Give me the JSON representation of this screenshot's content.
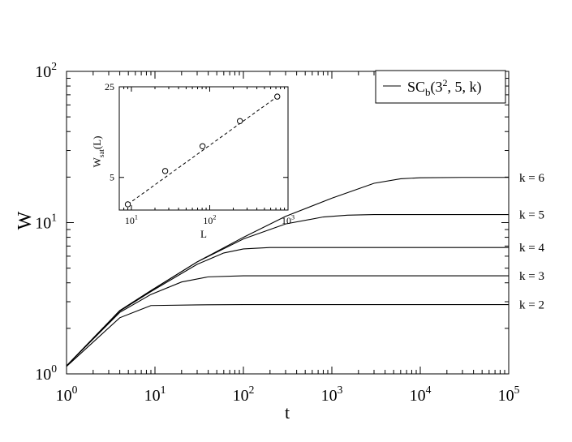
{
  "chart_data": [
    {
      "type": "line",
      "title": "",
      "xlabel": "t",
      "ylabel": "W",
      "xscale": "log",
      "yscale": "log",
      "xlim": [
        1,
        100000
      ],
      "ylim": [
        1,
        100
      ],
      "x_ticks": [
        {
          "value": 1,
          "base": "10",
          "exp": "0"
        },
        {
          "value": 10,
          "base": "10",
          "exp": "1"
        },
        {
          "value": 100,
          "base": "10",
          "exp": "2"
        },
        {
          "value": 1000,
          "base": "10",
          "exp": "3"
        },
        {
          "value": 10000,
          "base": "10",
          "exp": "4"
        },
        {
          "value": 100000,
          "base": "10",
          "exp": "5"
        }
      ],
      "y_ticks": [
        {
          "value": 1,
          "base": "10",
          "exp": "0"
        },
        {
          "value": 10,
          "base": "10",
          "exp": "1"
        },
        {
          "value": 100,
          "base": "10",
          "exp": "2"
        }
      ],
      "legend": {
        "position": "top-right",
        "entries": [
          {
            "main": "SC",
            "sub": "b",
            "open": "(3",
            "sup": "2",
            "close": ", 5, k)"
          }
        ]
      },
      "series": [
        {
          "name": "k = 2",
          "x": [
            1,
            4,
            9,
            30,
            100,
            1000,
            10000,
            100000
          ],
          "y": [
            1.12,
            2.35,
            2.83,
            2.86,
            2.87,
            2.87,
            2.87,
            2.87
          ]
        },
        {
          "name": "k = 3",
          "x": [
            1,
            4,
            9,
            20,
            40,
            100,
            1000,
            10000,
            100000
          ],
          "y": [
            1.13,
            2.55,
            3.35,
            4.05,
            4.38,
            4.45,
            4.45,
            4.45,
            4.45
          ]
        },
        {
          "name": "k = 4",
          "x": [
            1,
            4,
            9,
            30,
            60,
            100,
            200,
            1000,
            10000,
            100000
          ],
          "y": [
            1.13,
            2.6,
            3.5,
            5.3,
            6.3,
            6.7,
            6.85,
            6.85,
            6.85,
            6.85
          ]
        },
        {
          "name": "k = 5",
          "x": [
            1,
            4,
            9,
            30,
            100,
            300,
            800,
            1500,
            3000,
            10000,
            100000
          ],
          "y": [
            1.13,
            2.62,
            3.55,
            5.5,
            7.8,
            9.8,
            10.9,
            11.2,
            11.3,
            11.3,
            11.3
          ]
        },
        {
          "name": "k = 6",
          "x": [
            1,
            4,
            9,
            30,
            100,
            300,
            1000,
            3000,
            6000,
            10000,
            30000,
            100000
          ],
          "y": [
            1.13,
            2.62,
            3.55,
            5.5,
            8.0,
            11.0,
            14.5,
            18.2,
            19.5,
            19.8,
            19.9,
            19.9
          ]
        }
      ],
      "curve_labels": [
        "k = 6",
        "k = 5",
        "k = 4",
        "k = 3",
        "k = 2"
      ]
    },
    {
      "type": "scatter",
      "title": "",
      "xlabel": "L",
      "ylabel_main": "W",
      "ylabel_sub": "sat",
      "ylabel_tail": "(L)",
      "xscale": "log",
      "yscale": "log",
      "xlim": [
        7,
        1000
      ],
      "ylim": [
        2.8,
        25
      ],
      "x_ticks": [
        {
          "value": 10,
          "base": "10",
          "exp": "1"
        },
        {
          "value": 100,
          "base": "10",
          "exp": "2"
        },
        {
          "value": 1000,
          "base": "10",
          "exp": "3"
        }
      ],
      "y_ticks": [
        {
          "value": 5,
          "label": "5"
        },
        {
          "value": 25,
          "label": "25"
        }
      ],
      "points": [
        {
          "x": 9,
          "y": 3.1
        },
        {
          "x": 27,
          "y": 5.6
        },
        {
          "x": 81,
          "y": 8.7
        },
        {
          "x": 243,
          "y": 13.6
        },
        {
          "x": 729,
          "y": 21.0
        }
      ],
      "fit_line": {
        "x": [
          9,
          729
        ],
        "y": [
          3.1,
          21.0
        ],
        "style": "dashed"
      }
    }
  ]
}
